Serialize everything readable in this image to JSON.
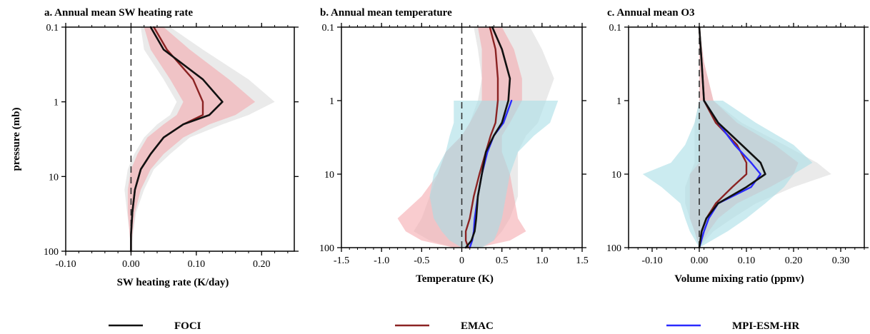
{
  "colors": {
    "FOCI": "#111111",
    "EMAC": "#8b2323",
    "MPI-ESM-HR": "#2b2bff",
    "FOCI_band": "#d8d8d8",
    "EMAC_band": "#f4a3a8",
    "MPI_band": "#a8dde6"
  },
  "shared": {
    "ylabel": "pressure (mb)",
    "ylim": [
      100,
      0.1
    ],
    "yscale": "log",
    "yticks": [
      0.1,
      1,
      10,
      100
    ],
    "ytick_labels": [
      "0.1",
      "1",
      "10",
      "100"
    ]
  },
  "legend": {
    "placement": "bottom",
    "entries": [
      {
        "name": "FOCI",
        "color": "#111111"
      },
      {
        "name": "EMAC",
        "color": "#8b2323"
      },
      {
        "name": "MPI-ESM-HR",
        "color": "#2b2bff"
      }
    ]
  },
  "chart_data": [
    {
      "type": "line",
      "title": "a. Annual mean SW heating rate",
      "xlabel": "SW heating rate (K/day)",
      "ylabel": "pressure (mb)",
      "xlim": [
        -0.1,
        0.25
      ],
      "xticks": [
        -0.1,
        0,
        0.1,
        0.2
      ],
      "xtick_labels": [
        "-0.10",
        "0.00",
        "0.10",
        "0.20"
      ],
      "zero_line": true,
      "y": [
        0.1,
        0.2,
        0.5,
        1,
        1.5,
        2,
        3,
        5,
        8,
        15,
        30,
        60,
        100
      ],
      "series": [
        {
          "name": "FOCI",
          "values": [
            0.03,
            0.05,
            0.11,
            0.14,
            0.12,
            0.08,
            0.05,
            0.03,
            0.015,
            0.006,
            0.002,
            0.0,
            0.0
          ]
        },
        {
          "name": "EMAC",
          "values": [
            0.035,
            0.055,
            0.095,
            0.11,
            0.11,
            0.08,
            0.05,
            0.03,
            0.015,
            0.006,
            0.002,
            0.0,
            0.0
          ],
          "band_low": [
            0.02,
            0.03,
            0.06,
            0.08,
            0.07,
            0.05,
            0.025,
            0.01,
            0.0,
            -0.005,
            -0.005,
            -0.002,
            0.0
          ],
          "band_high": [
            0.05,
            0.09,
            0.15,
            0.19,
            0.16,
            0.12,
            0.08,
            0.05,
            0.03,
            0.015,
            0.006,
            0.002,
            0.0
          ]
        }
      ],
      "foci_band": {
        "low": [
          0.015,
          0.02,
          0.05,
          0.07,
          0.06,
          0.04,
          0.02,
          0.005,
          -0.005,
          -0.01,
          -0.006,
          -0.002,
          0.0
        ],
        "high": [
          0.06,
          0.11,
          0.18,
          0.22,
          0.18,
          0.14,
          0.09,
          0.06,
          0.035,
          0.02,
          0.008,
          0.003,
          0.0
        ]
      }
    },
    {
      "type": "line",
      "title": "b. Annual mean temperature",
      "xlabel": "Temperature (K)",
      "ylabel": "pressure (mb)",
      "xlim": [
        -1.5,
        1.5
      ],
      "xticks": [
        -1.5,
        -1.0,
        -0.5,
        0,
        0.5,
        1.0,
        1.5
      ],
      "xtick_labels": [
        "-1.5",
        "-1.0",
        "-0.5",
        "0",
        "0.5",
        "1.0",
        "1.5"
      ],
      "zero_line": true,
      "y": [
        0.1,
        0.2,
        0.5,
        1,
        2,
        3,
        5,
        10,
        20,
        40,
        60,
        80,
        100
      ],
      "series": [
        {
          "name": "FOCI",
          "values": [
            0.38,
            0.5,
            0.6,
            0.58,
            0.5,
            0.4,
            0.3,
            0.25,
            0.2,
            0.18,
            0.16,
            0.12,
            0.05
          ]
        },
        {
          "name": "EMAC",
          "values": [
            0.35,
            0.42,
            0.45,
            0.45,
            0.42,
            0.36,
            0.3,
            0.22,
            0.15,
            0.1,
            0.05,
            0.05,
            0.08
          ],
          "band_low": [
            0.2,
            0.25,
            0.25,
            0.25,
            0.1,
            0.0,
            -0.2,
            -0.3,
            -0.5,
            -0.8,
            -0.7,
            -0.5,
            -0.1
          ],
          "band_high": [
            0.5,
            0.65,
            0.75,
            0.75,
            0.6,
            0.5,
            0.5,
            0.6,
            0.65,
            0.7,
            0.8,
            0.6,
            0.2
          ]
        },
        {
          "name": "MPI-ESM-HR",
          "values": [
            null,
            null,
            null,
            0.62,
            0.52,
            0.4,
            0.32,
            0.25,
            0.2,
            0.16,
            0.15,
            0.13,
            0.1
          ],
          "band_low": [
            null,
            null,
            null,
            -0.1,
            -0.1,
            -0.15,
            -0.2,
            -0.35,
            -0.4,
            -0.35,
            -0.25,
            -0.15,
            0.0
          ],
          "band_high": [
            null,
            null,
            null,
            1.2,
            1.1,
            0.9,
            0.7,
            0.6,
            0.55,
            0.5,
            0.45,
            0.4,
            0.25
          ]
        }
      ],
      "foci_band": {
        "low": [
          0.15,
          0.2,
          0.25,
          0.2,
          0.1,
          0.0,
          -0.2,
          -0.3,
          -0.4,
          -0.5,
          -0.6,
          -0.4,
          -0.1
        ],
        "high": [
          0.85,
          1.0,
          1.15,
          1.05,
          0.95,
          0.8,
          0.7,
          0.7,
          0.7,
          0.6,
          0.5,
          0.4,
          0.2
        ]
      }
    },
    {
      "type": "line",
      "title": "c. Annual mean O3",
      "xlabel": "Volume mixing ratio (ppmv)",
      "ylabel": "pressure (mb)",
      "xlim": [
        -0.15,
        0.35
      ],
      "xticks": [
        -0.1,
        0,
        0.1,
        0.2,
        0.3
      ],
      "xtick_labels": [
        "-0.10",
        "0.00",
        "0.10",
        "0.20",
        "0.30"
      ],
      "zero_line": true,
      "y": [
        0.1,
        0.3,
        1,
        2,
        4,
        7,
        10,
        15,
        25,
        40,
        60,
        100
      ],
      "series": [
        {
          "name": "FOCI",
          "values": [
            0.0,
            0.005,
            0.01,
            0.04,
            0.09,
            0.13,
            0.14,
            0.1,
            0.04,
            0.015,
            0.005,
            0.0
          ]
        },
        {
          "name": "EMAC",
          "values": [
            0.0,
            0.005,
            0.01,
            0.035,
            0.08,
            0.1,
            0.1,
            0.07,
            0.035,
            0.015,
            0.005,
            0.0
          ],
          "band_low": [
            0.0,
            0.0,
            0.0,
            0.0,
            0.0,
            0.0,
            -0.02,
            -0.02,
            -0.02,
            -0.02,
            -0.01,
            0.0
          ],
          "band_high": [
            0.0,
            0.01,
            0.03,
            0.08,
            0.16,
            0.21,
            0.2,
            0.15,
            0.08,
            0.04,
            0.02,
            0.0
          ]
        },
        {
          "name": "MPI-ESM-HR",
          "values": [
            null,
            null,
            0.01,
            0.04,
            0.075,
            0.11,
            0.13,
            0.11,
            0.04,
            0.02,
            0.01,
            0.0
          ],
          "band_low": [
            null,
            null,
            0.0,
            -0.01,
            -0.03,
            -0.06,
            -0.12,
            -0.08,
            -0.04,
            -0.03,
            -0.02,
            0.0
          ],
          "band_high": [
            null,
            null,
            0.05,
            0.12,
            0.2,
            0.24,
            0.2,
            0.18,
            0.14,
            0.1,
            0.06,
            0.0
          ]
        }
      ],
      "foci_band": {
        "low": [
          0.0,
          0.0,
          0.0,
          -0.01,
          -0.01,
          -0.01,
          -0.02,
          -0.03,
          -0.03,
          -0.02,
          -0.01,
          0.0
        ],
        "high": [
          0.0,
          0.01,
          0.03,
          0.09,
          0.18,
          0.25,
          0.28,
          0.2,
          0.12,
          0.07,
          0.03,
          0.0
        ]
      }
    }
  ]
}
